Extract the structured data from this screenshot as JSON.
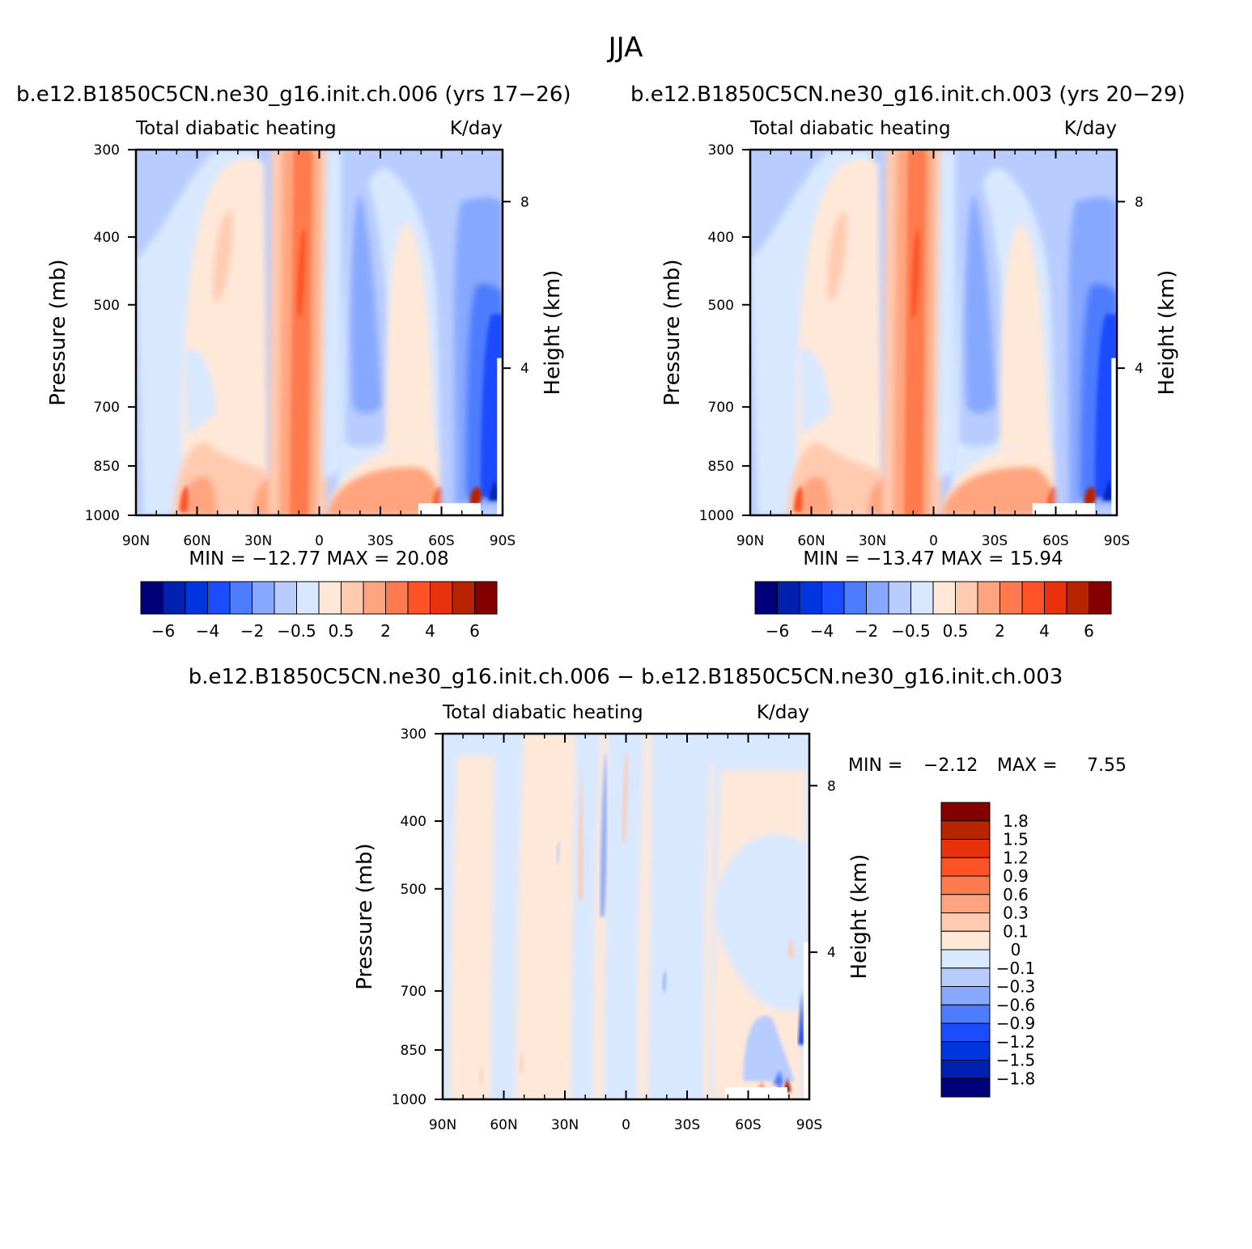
{
  "figure": {
    "title": "JJA"
  },
  "colors": {
    "abs_scale": [
      "#00007a",
      "#0020b0",
      "#0035e0",
      "#1b4cff",
      "#4e7cff",
      "#87a8ff",
      "#b8ccff",
      "#d8e8ff",
      "#ffe8d8",
      "#ffcab0",
      "#ffa47e",
      "#ff7a4e",
      "#ff5226",
      "#e8320c",
      "#b82400",
      "#840000"
    ],
    "diff_scale": [
      "#840000",
      "#b82400",
      "#e8320c",
      "#ff5226",
      "#ff7a4e",
      "#ffa47e",
      "#ffcab0",
      "#ffe8d8",
      "#d8e8ff",
      "#b8ccff",
      "#87a8ff",
      "#4e7cff",
      "#1b4cff",
      "#0035e0",
      "#0020b0",
      "#00007a"
    ]
  },
  "chart_data": [
    {
      "type": "heatmap",
      "id": "panel1",
      "title": "b.e12.B1850C5CN.ne30_g16.init.ch.006 (yrs 17−26)",
      "subtitle_left": "Total diabatic heating",
      "subtitle_right": "K/day",
      "ylabel": "Pressure (mb)",
      "ylabel_right": "Height (km)",
      "x_ticks": [
        "90N",
        "60N",
        "30N",
        "0",
        "30S",
        "60S",
        "90S"
      ],
      "y_ticks": [
        "300",
        "400",
        "500",
        "700",
        "850",
        "1000"
      ],
      "y_ticks_right": [
        "8",
        "4"
      ],
      "ylim": [
        1000,
        300
      ],
      "xlim": [
        90,
        -90
      ],
      "stats": {
        "min_label": "MIN =",
        "min": "−12.77",
        "max_label": "MAX =",
        "max": "20.08"
      },
      "colorbar_labels": [
        "−6",
        "−4",
        "−2",
        "−0.5",
        "0.5",
        "2",
        "4",
        "6"
      ]
    },
    {
      "type": "heatmap",
      "id": "panel2",
      "title": "b.e12.B1850C5CN.ne30_g16.init.ch.003 (yrs 20−29)",
      "subtitle_left": "Total diabatic heating",
      "subtitle_right": "K/day",
      "ylabel": "Pressure (mb)",
      "ylabel_right": "Height (km)",
      "x_ticks": [
        "90N",
        "60N",
        "30N",
        "0",
        "30S",
        "60S",
        "90S"
      ],
      "y_ticks": [
        "300",
        "400",
        "500",
        "700",
        "850",
        "1000"
      ],
      "y_ticks_right": [
        "8",
        "4"
      ],
      "ylim": [
        1000,
        300
      ],
      "xlim": [
        90,
        -90
      ],
      "stats": {
        "min_label": "MIN =",
        "min": "−13.47",
        "max_label": "MAX =",
        "max": "15.94"
      },
      "colorbar_labels": [
        "−6",
        "−4",
        "−2",
        "−0.5",
        "0.5",
        "2",
        "4",
        "6"
      ]
    },
    {
      "type": "heatmap",
      "id": "panel3",
      "title": "b.e12.B1850C5CN.ne30_g16.init.ch.006 − b.e12.B1850C5CN.ne30_g16.init.ch.003",
      "subtitle_left": "Total diabatic heating",
      "subtitle_right": "K/day",
      "ylabel": "Pressure (mb)",
      "ylabel_right": "Height (km)",
      "x_ticks": [
        "90N",
        "60N",
        "30N",
        "0",
        "30S",
        "60S",
        "90S"
      ],
      "y_ticks": [
        "300",
        "400",
        "500",
        "700",
        "850",
        "1000"
      ],
      "y_ticks_right": [
        "8",
        "4"
      ],
      "ylim": [
        1000,
        300
      ],
      "xlim": [
        90,
        -90
      ],
      "stats": {
        "min_label": "MIN =",
        "min": "−2.12",
        "max_label": "MAX =",
        "max": "7.55"
      },
      "colorbar_labels": [
        "1.8",
        "1.5",
        "1.2",
        "0.9",
        "0.6",
        "0.3",
        "0.1",
        "0",
        "−0.1",
        "−0.3",
        "−0.6",
        "−0.9",
        "−1.2",
        "−1.5",
        "−1.8"
      ]
    }
  ]
}
